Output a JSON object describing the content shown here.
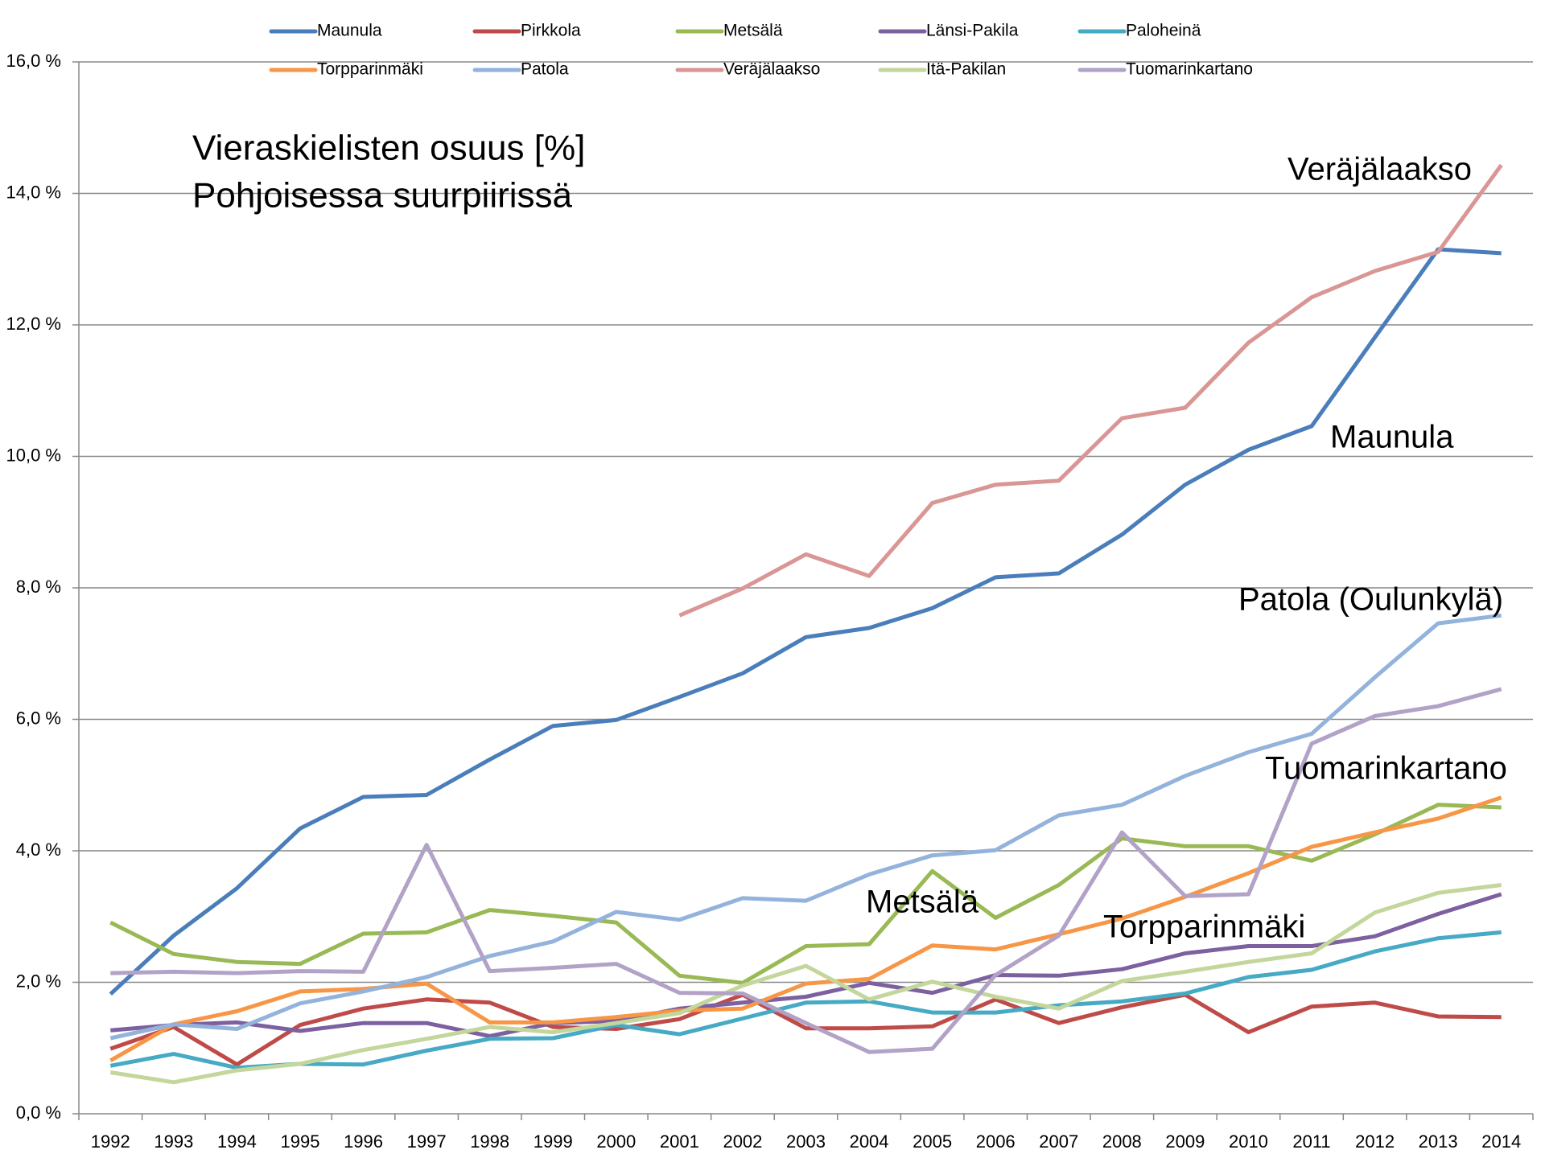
{
  "chart_data": {
    "type": "line",
    "title": [
      "Vieraskielisten osuus [%]",
      "Pohjoisessa suurpiirissä"
    ],
    "annotations": [
      "Veräjälaakso",
      "Maunula",
      "Patola (Oulunkylä)",
      "Tuomarinkartano",
      "Metsälä",
      "Torpparinmäki"
    ],
    "categories": [
      "1992",
      "1993",
      "1994",
      "1995",
      "1996",
      "1997",
      "1998",
      "1999",
      "2000",
      "2001",
      "2002",
      "2003",
      "2004",
      "2005",
      "2006",
      "2007",
      "2008",
      "2009",
      "2010",
      "2011",
      "2012",
      "2013",
      "2014"
    ],
    "ylim": [
      0,
      16
    ],
    "yticks": [
      {
        "value": 0,
        "label": "0,0 %"
      },
      {
        "value": 2,
        "label": "2,0 %"
      },
      {
        "value": 4,
        "label": "4,0 %"
      },
      {
        "value": 6,
        "label": "6,0 %"
      },
      {
        "value": 8,
        "label": "8,0 %"
      },
      {
        "value": 10,
        "label": "10,0 %"
      },
      {
        "value": 12,
        "label": "12,0 %"
      },
      {
        "value": 14,
        "label": "14,0 %"
      },
      {
        "value": 16,
        "label": "16,0 %"
      }
    ],
    "grid": true,
    "legend": "top",
    "series": [
      {
        "name": "Maunula",
        "color": "#4a7ebb",
        "values": [
          1.82,
          2.71,
          3.43,
          4.34,
          4.82,
          4.85,
          5.39,
          5.9,
          5.99,
          6.34,
          6.7,
          7.25,
          7.39,
          7.69,
          8.16,
          8.22,
          8.81,
          9.57,
          10.1,
          10.46,
          11.81,
          13.15,
          13.09
        ]
      },
      {
        "name": "Pirkkola",
        "color": "#be4b48",
        "values": [
          0.99,
          1.32,
          0.75,
          1.35,
          1.6,
          1.74,
          1.69,
          1.32,
          1.29,
          1.44,
          1.81,
          1.3,
          1.3,
          1.33,
          1.74,
          1.38,
          1.62,
          1.81,
          1.24,
          1.63,
          1.69,
          1.48,
          1.47
        ]
      },
      {
        "name": "Metsälä",
        "color": "#98b954",
        "values": [
          2.91,
          2.43,
          2.31,
          2.28,
          2.74,
          2.76,
          3.1,
          3.01,
          2.91,
          2.1,
          1.99,
          2.55,
          2.58,
          3.69,
          2.98,
          3.48,
          4.19,
          4.07,
          4.07,
          3.85,
          4.25,
          4.7,
          4.66
        ]
      },
      {
        "name": "Länsi-Pakila",
        "color": "#7d60a0",
        "values": [
          1.27,
          1.35,
          1.39,
          1.26,
          1.38,
          1.38,
          1.18,
          1.38,
          1.41,
          1.6,
          1.69,
          1.78,
          1.99,
          1.84,
          2.11,
          2.1,
          2.2,
          2.44,
          2.55,
          2.55,
          2.7,
          3.04,
          3.34
        ]
      },
      {
        "name": "Paloheinä",
        "color": "#46aac5",
        "values": [
          0.73,
          0.91,
          0.7,
          0.76,
          0.75,
          0.96,
          1.14,
          1.15,
          1.35,
          1.21,
          1.45,
          1.69,
          1.71,
          1.54,
          1.54,
          1.65,
          1.71,
          1.83,
          2.08,
          2.19,
          2.47,
          2.67,
          2.76
        ]
      },
      {
        "name": "Torpparinmäki",
        "color": "#f79646",
        "values": [
          0.81,
          1.36,
          1.56,
          1.86,
          1.9,
          1.98,
          1.39,
          1.39,
          1.47,
          1.57,
          1.6,
          1.98,
          2.05,
          2.56,
          2.5,
          2.73,
          2.97,
          3.3,
          3.66,
          4.06,
          4.28,
          4.49,
          4.81
        ]
      },
      {
        "name": "Patola",
        "color": "#94b3dc",
        "values": [
          1.15,
          1.36,
          1.29,
          1.68,
          1.86,
          2.08,
          2.4,
          2.62,
          3.07,
          2.95,
          3.28,
          3.24,
          3.64,
          3.93,
          4.01,
          4.54,
          4.7,
          5.14,
          5.5,
          5.78,
          6.64,
          7.46,
          7.58
        ]
      },
      {
        "name": "Veräjälaakso",
        "color": "#d99694",
        "values": [
          null,
          null,
          null,
          null,
          null,
          null,
          null,
          null,
          null,
          7.58,
          7.99,
          8.51,
          8.18,
          9.29,
          9.57,
          9.63,
          10.58,
          10.74,
          11.73,
          12.42,
          12.82,
          13.11,
          14.43
        ]
      },
      {
        "name": "Itä-Pakilan",
        "color": "#c3d69b",
        "values": [
          0.63,
          0.48,
          0.66,
          0.76,
          0.97,
          1.14,
          1.32,
          1.24,
          1.38,
          1.53,
          1.95,
          2.25,
          1.74,
          2.01,
          1.78,
          1.6,
          2.02,
          2.16,
          2.31,
          2.44,
          3.06,
          3.36,
          3.48
        ]
      },
      {
        "name": "Tuomarinkartano",
        "color": "#b2a2c7",
        "values": [
          2.14,
          2.16,
          2.14,
          2.17,
          2.16,
          4.09,
          2.17,
          2.22,
          2.28,
          1.84,
          1.83,
          1.38,
          0.94,
          0.99,
          2.11,
          2.71,
          4.28,
          3.31,
          3.34,
          5.63,
          6.05,
          6.2,
          6.46
        ]
      }
    ]
  }
}
